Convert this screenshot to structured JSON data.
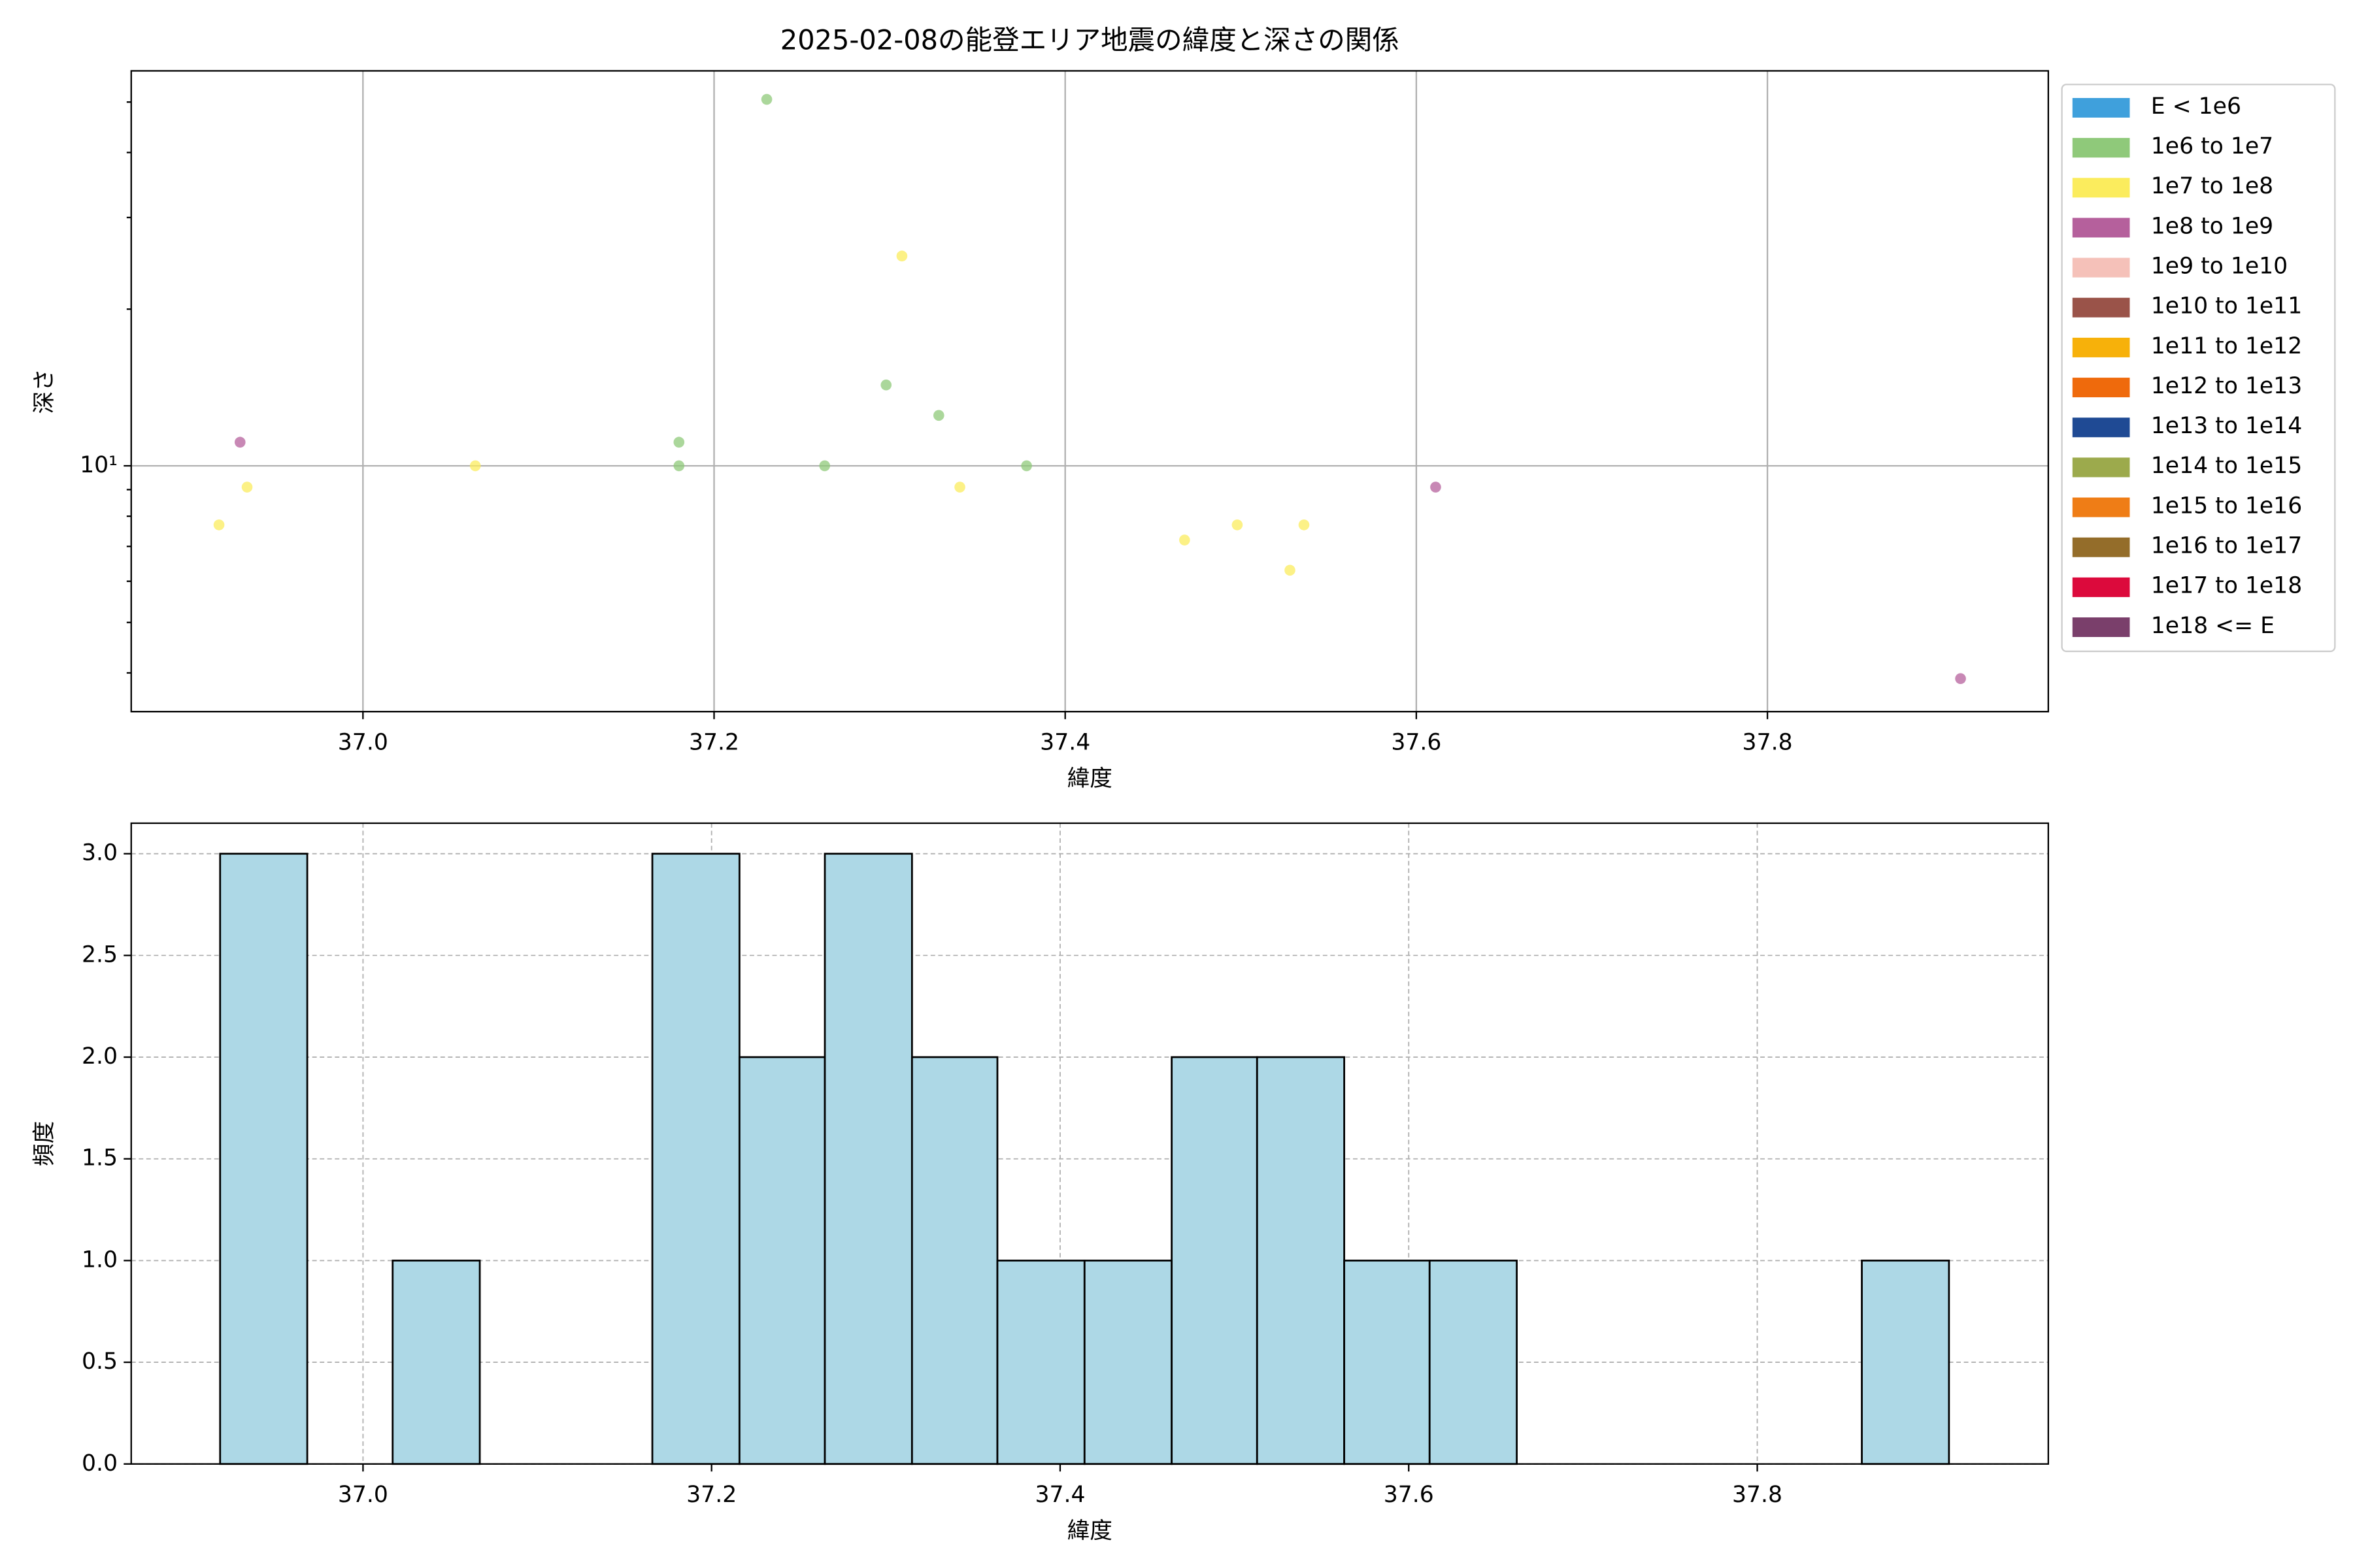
{
  "chart_data": [
    {
      "type": "scatter",
      "title": "2025-02-08の能登エリア地震の緯度と深さの関係",
      "x_label": "緯度",
      "y_label": "深さ",
      "xlim": [
        36.868,
        37.96
      ],
      "ylim": [
        3.37,
        57.4
      ],
      "yscale": "log",
      "grid": true,
      "legend": "outside-right",
      "xticks": [
        {
          "value": 37.0,
          "label": "37.0"
        },
        {
          "value": 37.2,
          "label": "37.2"
        },
        {
          "value": 37.4,
          "label": "37.4"
        },
        {
          "value": 37.6,
          "label": "37.6"
        },
        {
          "value": 37.8,
          "label": "37.8"
        }
      ],
      "yticks": [
        {
          "value": 10,
          "label": "10¹"
        }
      ],
      "series": [
        {
          "name": "E < 1e6",
          "color": "#3fa0dc",
          "x": [],
          "y": []
        },
        {
          "name": "1e6 to 1e7",
          "color": "#8fc97a",
          "x": [
            37.18,
            37.18,
            37.23,
            37.263,
            37.298,
            37.328,
            37.378
          ],
          "y": [
            11.1,
            10,
            50.6,
            10,
            14.3,
            12.5,
            10
          ]
        },
        {
          "name": "1e7 to 1e8",
          "color": "#fbec5d",
          "x": [
            36.934,
            36.918,
            37.064,
            37.307,
            37.34,
            37.468,
            37.498,
            37.528,
            37.536
          ],
          "y": [
            9.1,
            7.7,
            10,
            25.3,
            9.1,
            7.2,
            7.7,
            6.3,
            7.7
          ]
        },
        {
          "name": "1e8 to 1e9",
          "color": "#b5609c",
          "x": [
            36.93,
            37.611,
            37.91
          ],
          "y": [
            11.1,
            9.1,
            3.9
          ]
        },
        {
          "name": "1e9 to 1e10",
          "color": "#f5c1b9",
          "x": [],
          "y": []
        },
        {
          "name": "1e10 to 1e11",
          "color": "#9a5349",
          "x": [],
          "y": []
        },
        {
          "name": "1e11 to 1e12",
          "color": "#f7b10a",
          "x": [],
          "y": []
        },
        {
          "name": "1e12 to 1e13",
          "color": "#ef6a0c",
          "x": [],
          "y": []
        },
        {
          "name": "1e13 to 1e14",
          "color": "#1f4a94",
          "x": [],
          "y": []
        },
        {
          "name": "1e14 to 1e15",
          "color": "#9caa4c",
          "x": [],
          "y": []
        },
        {
          "name": "1e15 to 1e16",
          "color": "#ef7d16",
          "x": [],
          "y": []
        },
        {
          "name": "1e16 to 1e17",
          "color": "#946d2a",
          "x": [],
          "y": []
        },
        {
          "name": "1e17 to 1e18",
          "color": "#dc0a3c",
          "x": [],
          "y": []
        },
        {
          "name": "1e18 <= E",
          "color": "#7a3f6b",
          "x": [],
          "y": []
        }
      ]
    },
    {
      "type": "histogram",
      "x_label": "緯度",
      "y_label": "頻度",
      "color": "#add8e6",
      "grid": true,
      "xlim": [
        36.867,
        37.967
      ],
      "ylim": [
        0,
        3.15
      ],
      "xticks": [
        {
          "value": 37.0,
          "label": "37.0"
        },
        {
          "value": 37.2,
          "label": "37.2"
        },
        {
          "value": 37.4,
          "label": "37.4"
        },
        {
          "value": 37.6,
          "label": "37.6"
        },
        {
          "value": 37.8,
          "label": "37.8"
        }
      ],
      "yticks": [
        {
          "value": 0,
          "label": "0.0"
        },
        {
          "value": 0.5,
          "label": "0.5"
        },
        {
          "value": 1,
          "label": "1.0"
        },
        {
          "value": 1.5,
          "label": "1.5"
        },
        {
          "value": 2,
          "label": "2.0"
        },
        {
          "value": 2.5,
          "label": "2.5"
        },
        {
          "value": 3,
          "label": "3.0"
        }
      ],
      "bins": [
        36.918,
        36.968,
        37.017,
        37.067,
        37.116,
        37.166,
        37.216,
        37.265,
        37.315,
        37.364,
        37.414,
        37.464,
        37.513,
        37.563,
        37.612,
        37.662,
        37.712,
        37.761,
        37.811,
        37.86,
        37.91
      ],
      "values": [
        3,
        0,
        1,
        0,
        0,
        3,
        2,
        3,
        2,
        1,
        1,
        2,
        2,
        1,
        1,
        0,
        0,
        0,
        0,
        1
      ]
    }
  ]
}
